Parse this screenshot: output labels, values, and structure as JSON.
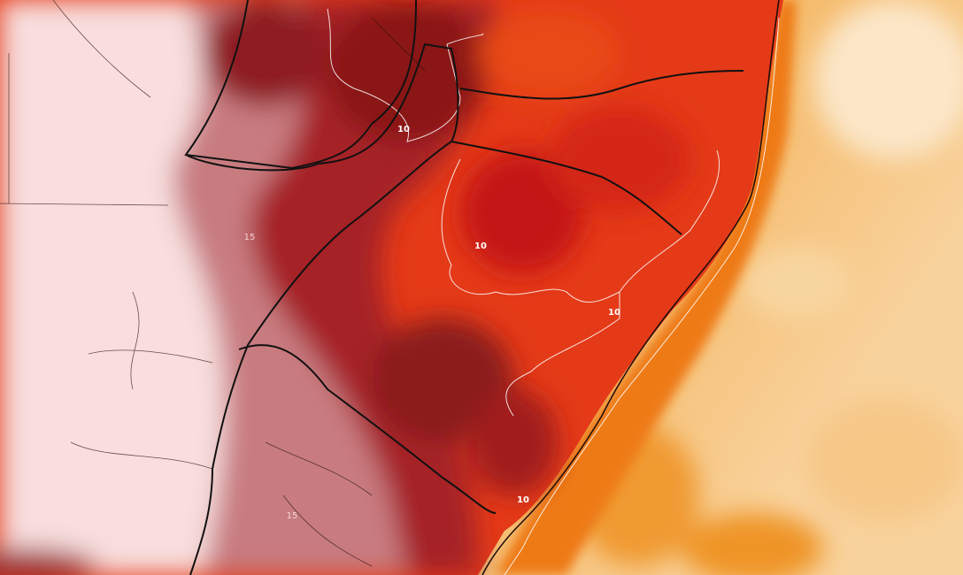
{
  "contour_labels": [
    "10",
    "10",
    "10",
    "10",
    "15",
    "15"
  ]
}
